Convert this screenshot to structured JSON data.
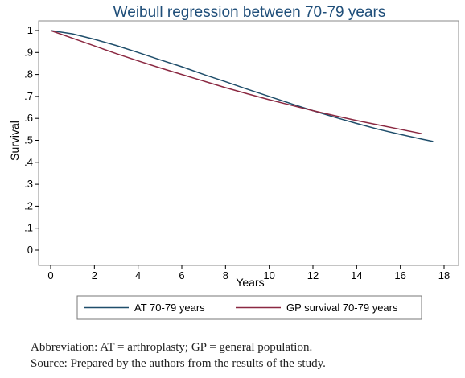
{
  "chart_data": {
    "type": "line",
    "title": "Weibull regression between 70-79 years",
    "xlabel": "Years",
    "ylabel": "Survival",
    "xlim": [
      0,
      18
    ],
    "ylim": [
      0,
      1
    ],
    "x_ticks": [
      0,
      2,
      4,
      6,
      8,
      10,
      12,
      14,
      16,
      18
    ],
    "x_tick_labels": [
      "0",
      "2",
      "4",
      "6",
      "8",
      "10",
      "12",
      "14",
      "16",
      "18"
    ],
    "y_ticks": [
      0,
      0.1,
      0.2,
      0.3,
      0.4,
      0.5,
      0.6,
      0.7,
      0.8,
      0.9,
      1
    ],
    "y_tick_labels": [
      "0",
      ".1",
      ".2",
      ".3",
      ".4",
      ".5",
      ".6",
      ".7",
      ".8",
      ".9",
      "1"
    ],
    "grid": false,
    "legend_position": "bottom",
    "series": [
      {
        "name": "AT 70-79 years",
        "color": "#1f4e6b",
        "x": [
          0,
          1,
          2,
          3,
          4,
          5,
          6,
          7,
          8,
          9,
          10,
          11,
          12,
          13,
          14,
          15,
          16,
          17,
          17.5
        ],
        "y": [
          1,
          0.985,
          0.96,
          0.932,
          0.9,
          0.867,
          0.835,
          0.8,
          0.767,
          0.733,
          0.7,
          0.667,
          0.635,
          0.605,
          0.577,
          0.55,
          0.527,
          0.505,
          0.495
        ]
      },
      {
        "name": "GP survival 70-79 years",
        "color": "#8b2942",
        "x": [
          0,
          1,
          2,
          3,
          4,
          5,
          6,
          7,
          8,
          9,
          10,
          11,
          12,
          13,
          14,
          15,
          16,
          17
        ],
        "y": [
          1,
          0.965,
          0.93,
          0.895,
          0.862,
          0.83,
          0.8,
          0.77,
          0.74,
          0.712,
          0.685,
          0.66,
          0.635,
          0.612,
          0.59,
          0.57,
          0.55,
          0.53
        ]
      }
    ]
  },
  "caption": {
    "line1": "Abbreviation: AT = arthroplasty; GP = general population.",
    "line2": "Source: Prepared by the authors from the results of the study."
  }
}
